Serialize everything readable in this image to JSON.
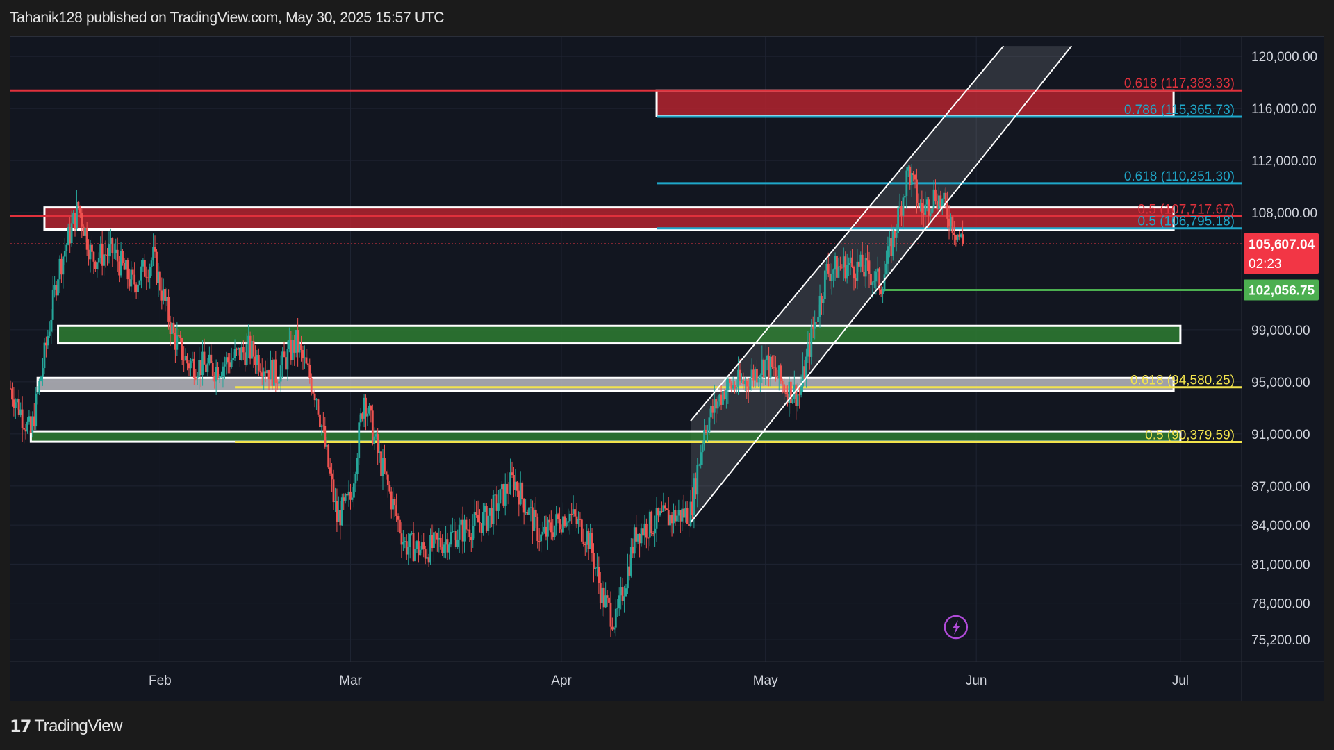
{
  "header": {
    "published_text": "Tahanik128 published on TradingView.com, May 30, 2025 15:57 UTC"
  },
  "footer": {
    "logo_glyph": "17",
    "brand": "TradingView"
  },
  "chart_data": {
    "type": "candlestick",
    "symbol_price_format": "usd",
    "x_tick_labels": [
      "Feb",
      "Mar",
      "Apr",
      "May",
      "Jun",
      "Jul"
    ],
    "x_tick_dates": [
      "2025-02-01",
      "2025-03-01",
      "2025-04-01",
      "2025-05-01",
      "2025-06-01",
      "2025-07-01"
    ],
    "x_range": [
      "2025-01-10",
      "2025-07-10"
    ],
    "y_tick_labels": [
      "120,000.00",
      "116,000.00",
      "112,000.00",
      "108,000.00",
      "99,000.00",
      "95,000.00",
      "91,000.00",
      "87,000.00",
      "84,000.00",
      "81,000.00",
      "78,000.00",
      "75,200.00"
    ],
    "y_range": [
      73500,
      121500
    ],
    "colors": {
      "up": "#26a69a",
      "down": "#ef5350",
      "background": "#121620",
      "grid": "#1f2432"
    },
    "price_path": [
      [
        "2025-01-10",
        94500
      ],
      [
        "2025-01-13",
        91000
      ],
      [
        "2025-01-15",
        97000
      ],
      [
        "2025-01-17",
        103500
      ],
      [
        "2025-01-20",
        108500
      ],
      [
        "2025-01-22",
        104500
      ],
      [
        "2025-01-25",
        105000
      ],
      [
        "2025-01-28",
        102500
      ],
      [
        "2025-01-31",
        104500
      ],
      [
        "2025-02-03",
        98500
      ],
      [
        "2025-02-05",
        96500
      ],
      [
        "2025-02-09",
        96000
      ],
      [
        "2025-02-14",
        97500
      ],
      [
        "2025-02-18",
        95500
      ],
      [
        "2025-02-21",
        98000
      ],
      [
        "2025-02-24",
        94000
      ],
      [
        "2025-02-27",
        84500
      ],
      [
        "2025-03-01",
        86000
      ],
      [
        "2025-03-03",
        94000
      ],
      [
        "2025-03-05",
        89500
      ],
      [
        "2025-03-09",
        82500
      ],
      [
        "2025-03-12",
        82000
      ],
      [
        "2025-03-17",
        83500
      ],
      [
        "2025-03-21",
        84500
      ],
      [
        "2025-03-25",
        87500
      ],
      [
        "2025-03-29",
        83000
      ],
      [
        "2025-04-02",
        85000
      ],
      [
        "2025-04-05",
        83000
      ],
      [
        "2025-04-07",
        78500
      ],
      [
        "2025-04-09",
        76500
      ],
      [
        "2025-04-12",
        83500
      ],
      [
        "2025-04-16",
        84500
      ],
      [
        "2025-04-20",
        85000
      ],
      [
        "2025-04-22",
        91500
      ],
      [
        "2025-04-25",
        94500
      ],
      [
        "2025-04-28",
        95000
      ],
      [
        "2025-05-01",
        96500
      ],
      [
        "2025-05-04",
        94500
      ],
      [
        "2025-05-06",
        94000
      ],
      [
        "2025-05-08",
        99000
      ],
      [
        "2025-05-10",
        103500
      ],
      [
        "2025-05-13",
        104000
      ],
      [
        "2025-05-16",
        103500
      ],
      [
        "2025-05-18",
        102500
      ],
      [
        "2025-05-20",
        106500
      ],
      [
        "2025-05-22",
        111200
      ],
      [
        "2025-05-24",
        108000
      ],
      [
        "2025-05-26",
        109500
      ],
      [
        "2025-05-28",
        107800
      ],
      [
        "2025-05-30",
        105600
      ]
    ],
    "horizontal_lines": [
      {
        "price": 117383.33,
        "color": "#e0313c",
        "from": "2025-01-10",
        "label": "0.618 (117,383.33)"
      },
      {
        "price": 115365.73,
        "color": "#1fa7c9",
        "from": "2025-04-15",
        "label": "0.786 (115,365.73)"
      },
      {
        "price": 110251.3,
        "color": "#1fa7c9",
        "from": "2025-04-15",
        "label": "0.618 (110,251.30)"
      },
      {
        "price": 107717.67,
        "color": "#e0313c",
        "from": "2025-01-10",
        "label": "0.5 (107,717.67)"
      },
      {
        "price": 106795.18,
        "color": "#1fa7c9",
        "from": "2025-04-15",
        "label": "0.5 (106,795.18)"
      },
      {
        "price": 102056.75,
        "color": "#4caf50",
        "from": "2025-05-18",
        "label": ""
      },
      {
        "price": 94580.25,
        "color": "#f2e34c",
        "from": "2025-02-12",
        "label": "0.618 (94,580.25)"
      },
      {
        "price": 90379.59,
        "color": "#f2e34c",
        "from": "2025-02-12",
        "label": "0.5 (90,379.59)"
      }
    ],
    "zones": [
      {
        "top": 117383,
        "bottom": 115400,
        "from": "2025-04-15",
        "to": "2025-06-30",
        "fill": "#b3232f",
        "border": "#ffffff"
      },
      {
        "top": 108400,
        "bottom": 106700,
        "from": "2025-01-15",
        "to": "2025-06-30",
        "fill": "#b3232f",
        "border": "#ffffff"
      },
      {
        "top": 99300,
        "bottom": 97950,
        "from": "2025-01-17",
        "to": "2025-07-01",
        "fill": "#2e7d32",
        "border": "#ffffff"
      },
      {
        "top": 95300,
        "bottom": 94300,
        "from": "2025-01-14",
        "to": "2025-06-30",
        "fill": "#b9b9bf",
        "border": "#ffffff"
      },
      {
        "top": 91200,
        "bottom": 90400,
        "from": "2025-01-13",
        "to": "2025-07-01",
        "fill": "#2e7d32",
        "border": "#ffffff"
      }
    ],
    "channel": {
      "lower": [
        [
          "2025-04-20",
          84200
        ],
        [
          "2025-06-15",
          120800
        ]
      ],
      "upper": [
        [
          "2025-04-20",
          92000
        ],
        [
          "2025-06-05",
          120800
        ]
      ],
      "fill": "#ffffff",
      "stroke": "#ffffff"
    },
    "last_price_line": 105607.04,
    "price_badges": [
      {
        "price": 105607.04,
        "value": "105,607.04",
        "sub": "02:23",
        "color": "#f23645"
      },
      {
        "price": 102056.75,
        "value": "102,056.75",
        "sub": "",
        "color": "#4caf50"
      }
    ],
    "annotations": [
      {
        "text": "0.618 (117,383.33)",
        "price": 117383.33,
        "color": "#e0313c"
      },
      {
        "text": "0.786 (115,365.73)",
        "price": 115365.73,
        "color": "#1fa7c9"
      },
      {
        "text": "0.618 (110,251.30)",
        "price": 110251.3,
        "color": "#1fa7c9"
      },
      {
        "text": "0.5 (107,717.67)",
        "price": 107717.67,
        "color": "#e0313c"
      },
      {
        "text": "0.5 (106,795.18)",
        "price": 106795.18,
        "color": "#1fa7c9"
      },
      {
        "text": "0.618 (94,580.25)",
        "price": 94580.25,
        "color": "#f2e34c"
      },
      {
        "text": "0.5 (90,379.59)",
        "price": 90379.59,
        "color": "#f2e34c"
      }
    ],
    "event_marker": {
      "date": "2025-05-29",
      "icon": "lightning-icon",
      "color": "#b04ad8"
    }
  }
}
